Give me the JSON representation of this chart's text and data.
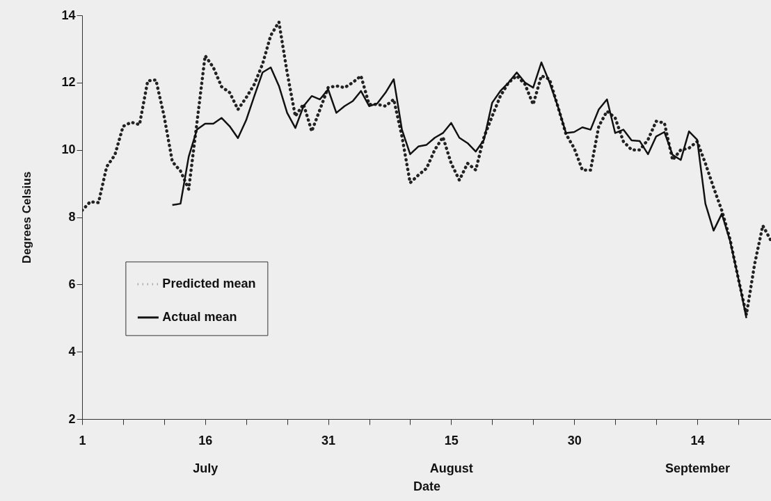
{
  "chart_data": {
    "type": "line",
    "xlabel": "Date",
    "ylabel": "Degrees Celsius",
    "x": [
      "--07-01",
      "--07-02",
      "--07-03",
      "--07-04",
      "--07-05",
      "--07-06",
      "--07-07",
      "--07-08",
      "--07-09",
      "--07-10",
      "--07-11",
      "--07-12",
      "--07-13",
      "--07-14",
      "--07-15",
      "--07-16",
      "--07-17",
      "--07-18",
      "--07-19",
      "--07-20",
      "--07-21",
      "--07-22",
      "--07-23",
      "--07-24",
      "--07-25",
      "--07-26",
      "--07-27",
      "--07-28",
      "--07-29",
      "--07-30",
      "--07-31",
      "--08-01",
      "--08-02",
      "--08-03",
      "--08-04",
      "--08-05",
      "--08-06",
      "--08-07",
      "--08-08",
      "--08-09",
      "--08-10",
      "--08-11",
      "--08-12",
      "--08-13",
      "--08-14",
      "--08-15",
      "--08-16",
      "--08-17",
      "--08-18",
      "--08-19",
      "--08-20",
      "--08-21",
      "--08-22",
      "--08-23",
      "--08-24",
      "--08-25",
      "--08-26",
      "--08-27",
      "--08-28",
      "--08-29",
      "--08-30",
      "--08-31",
      "--09-01",
      "--09-02",
      "--09-03",
      "--09-04",
      "--09-05",
      "--09-06",
      "--09-07",
      "--09-08",
      "--09-09",
      "--09-10",
      "--09-11",
      "--09-12",
      "--09-13",
      "--09-14",
      "--09-15",
      "--09-16",
      "--09-17",
      "--09-18",
      "--09-19",
      "--09-20",
      "--09-21",
      "--09-22",
      "--09-23"
    ],
    "series": [
      {
        "name": "Predicted mean",
        "color": "#222222",
        "line_style": "dotted",
        "values": [
          8.2,
          8.46,
          8.43,
          9.5,
          9.85,
          10.7,
          10.82,
          10.75,
          12.05,
          12.08,
          11.0,
          9.65,
          9.37,
          8.83,
          10.8,
          12.8,
          12.45,
          11.88,
          11.7,
          11.2,
          11.55,
          11.95,
          12.55,
          13.4,
          13.8,
          12.3,
          11.0,
          11.36,
          10.55,
          11.2,
          11.85,
          11.9,
          11.85,
          12.0,
          12.2,
          11.35,
          11.35,
          11.3,
          11.5,
          10.4,
          9.02,
          9.25,
          9.45,
          10.0,
          10.38,
          9.6,
          9.1,
          9.6,
          9.4,
          10.38,
          11.0,
          11.6,
          12.0,
          12.2,
          11.95,
          11.35,
          12.2,
          12.1,
          11.3,
          10.47,
          10.05,
          9.4,
          9.4,
          10.7,
          11.15,
          10.95,
          10.25,
          10.0,
          10.0,
          10.3,
          10.85,
          10.8,
          9.7,
          10.0,
          10.05,
          10.25,
          9.6,
          8.88,
          8.2,
          7.35,
          6.19,
          5.1,
          6.6,
          7.75,
          7.3
        ]
      },
      {
        "name": "Actual mean",
        "color": "#111111",
        "line_style": "solid",
        "values": [
          null,
          null,
          null,
          null,
          null,
          null,
          null,
          null,
          null,
          null,
          null,
          8.36,
          8.4,
          9.8,
          10.6,
          10.78,
          10.78,
          10.95,
          10.7,
          10.35,
          10.88,
          11.6,
          12.3,
          12.45,
          11.9,
          11.1,
          10.65,
          11.3,
          11.6,
          11.5,
          11.8,
          11.1,
          11.3,
          11.45,
          11.75,
          11.3,
          11.38,
          11.7,
          12.1,
          10.6,
          9.87,
          10.1,
          10.15,
          10.36,
          10.5,
          10.8,
          10.36,
          10.2,
          9.95,
          10.3,
          11.4,
          11.75,
          12.0,
          12.3,
          12.0,
          11.85,
          12.6,
          12.0,
          11.3,
          10.5,
          10.53,
          10.67,
          10.6,
          11.2,
          11.5,
          10.5,
          10.6,
          10.28,
          10.26,
          9.87,
          10.4,
          10.53,
          9.85,
          9.7,
          10.55,
          10.3,
          8.4,
          7.6,
          8.1,
          7.3,
          6.2,
          5.0,
          null,
          null,
          null
        ]
      }
    ],
    "xlim": [
      "--07-01",
      "--09-23"
    ],
    "xticks": [
      {
        "value": "--07-01",
        "label": "1"
      },
      {
        "value": "--07-06",
        "label": null
      },
      {
        "value": "--07-11",
        "label": null
      },
      {
        "value": "--07-16",
        "label": "16\nJuly"
      },
      {
        "value": "--07-21",
        "label": null
      },
      {
        "value": "--07-26",
        "label": null
      },
      {
        "value": "--07-31",
        "label": "31"
      },
      {
        "value": "--08-05",
        "label": null
      },
      {
        "value": "--08-10",
        "label": null
      },
      {
        "value": "--08-15",
        "label": "15\nAugust"
      },
      {
        "value": "--08-20",
        "label": null
      },
      {
        "value": "--08-25",
        "label": null
      },
      {
        "value": "--08-30",
        "label": "30"
      },
      {
        "value": "--09-04",
        "label": null
      },
      {
        "value": "--09-09",
        "label": null
      },
      {
        "value": "--09-14",
        "label": "14\nSeptember"
      },
      {
        "value": "--09-19",
        "label": null
      }
    ],
    "ylim": [
      2,
      14
    ],
    "yticks": [
      2,
      4,
      6,
      8,
      10,
      12,
      14
    ],
    "grid": false,
    "legend": "bottom left"
  }
}
